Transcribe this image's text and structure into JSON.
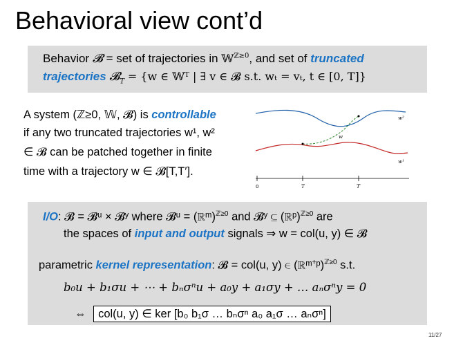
{
  "title": "Behavioral view cont’d",
  "definitions": {
    "behavior_word": "Behavior",
    "equals_set": "= set of trajectories in",
    "and_set_of": ", and set of",
    "truncated": "truncated",
    "trajectories": "trajectories",
    "truncated_formula": "= {w ∈ 𝕎ᵀ | ∃ v ∈ 𝓑 s.t. wₜ = vₜ, t ∈ [0, T]}"
  },
  "controllability": {
    "line1_a": "A system (ℤ≥0, 𝕎, 𝓑) is",
    "controllable": "controllable",
    "line2": "if any two truncated trajectories w¹, w²",
    "line3": "∈ 𝓑 can be patched together in finite",
    "line4": "time with a trajectory w ∈ 𝓑[T,T′]."
  },
  "plot": {
    "labels": {
      "w_top": "w²",
      "w_mid": "w",
      "w_bot": "w¹",
      "t0": "0",
      "t1": "T",
      "t2": "T′"
    },
    "colors": {
      "top": "#1f5fa8",
      "bottom": "#c42a2a",
      "patch": "#2e8b2e"
    }
  },
  "io": {
    "io_label": "I/O",
    "io_text_a": ": 𝓑 = 𝓑ᵘ × 𝓑ʸ where 𝓑ᵘ = (ℝᵐ)",
    "io_text_b": "and 𝓑ʸ ⊆ (ℝᵖ)",
    "io_text_c": "are",
    "line2_a": "the spaces of",
    "io_signals": "input and output",
    "line2_b": "signals ⇒ w = col(u, y) ∈ 𝓑",
    "param_a": "parametric",
    "kernel": "kernel representation",
    "param_b": ": 𝓑 = col(u, y) ∈ (ℝᵐ⁺ᵖ)",
    "param_c": "s.t.",
    "equation": "b₀u + b₁σu + ⋯ + bₙσⁿu  +  a₀y + a₁σy + … aₙσⁿy  =  0",
    "equiv": "⇔",
    "kernel_rep": "col(u, y) ∈ ker [b₀ b₁σ … bₙσⁿ  a₀ a₁σ … aₙσⁿ]",
    "exp": "ℤ≥0"
  },
  "page": "11/27"
}
